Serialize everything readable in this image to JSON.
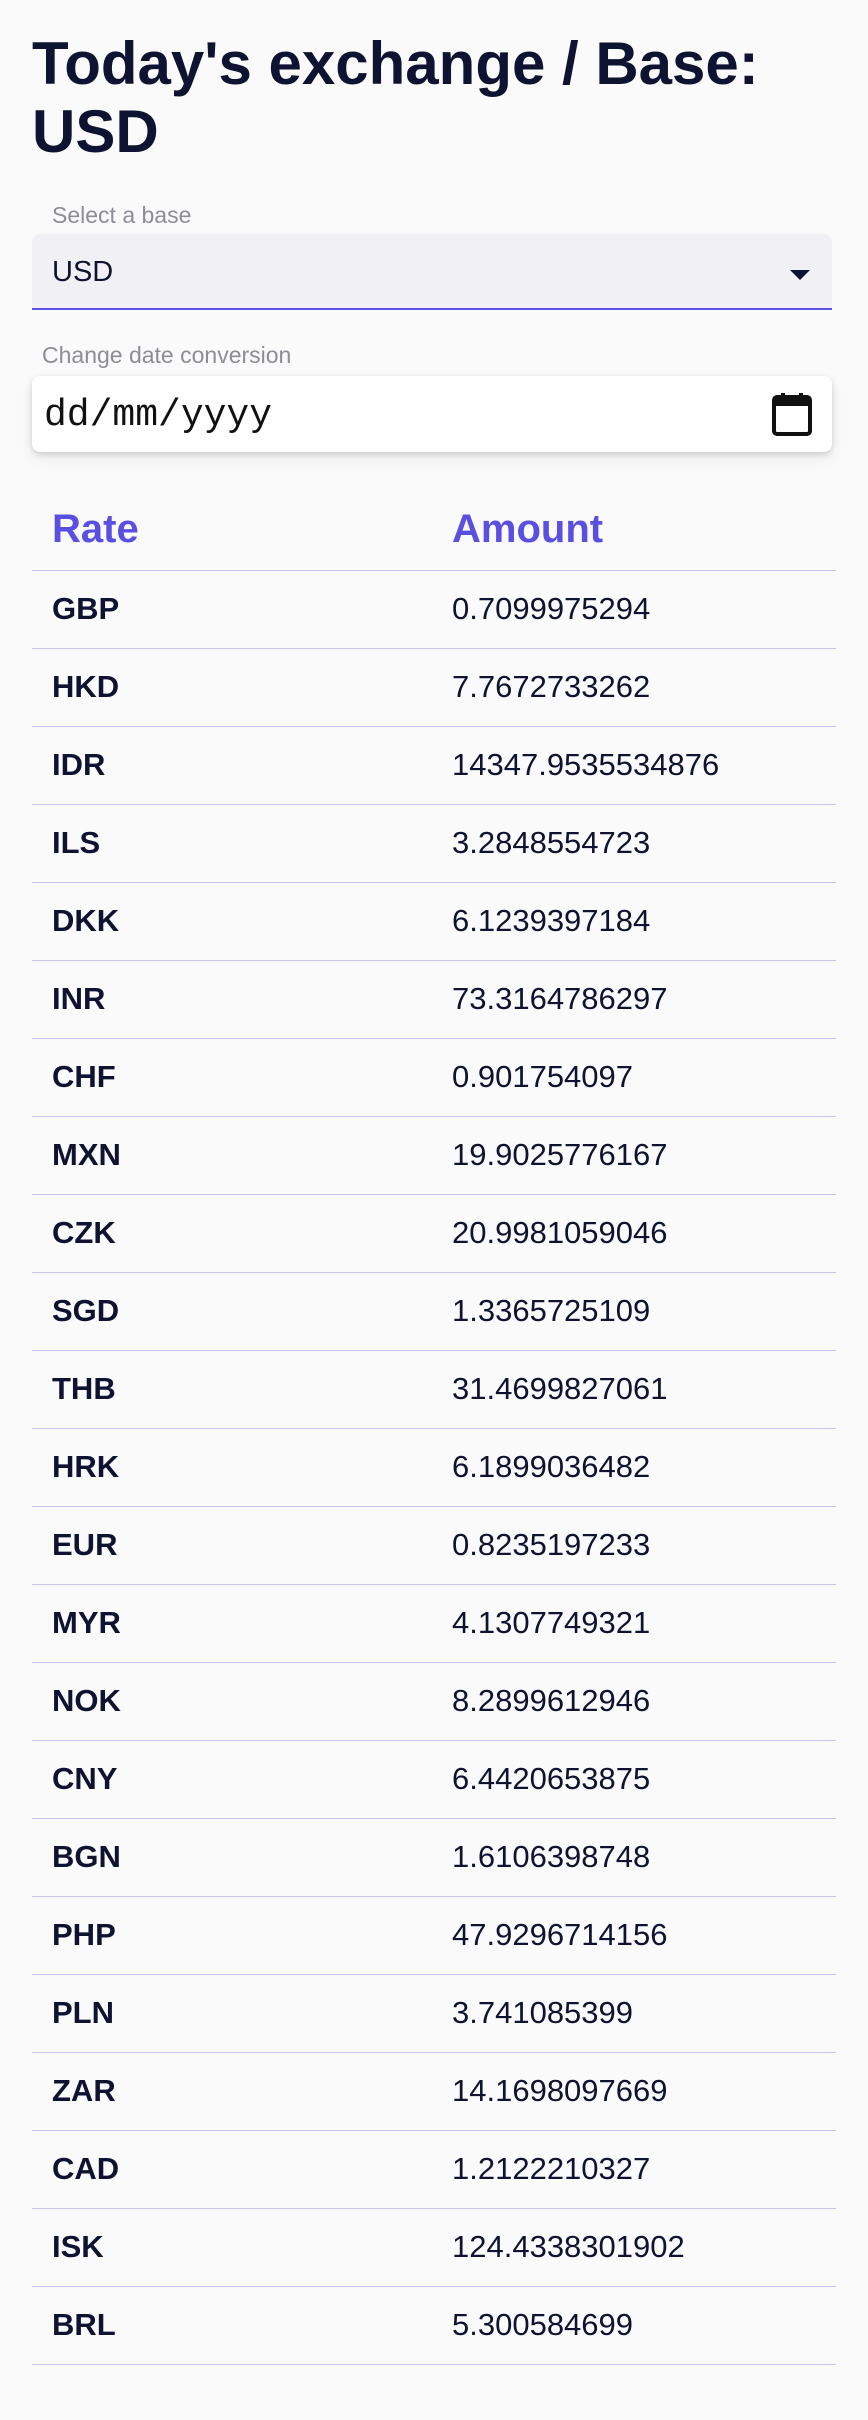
{
  "header": {
    "title": "Today's exchange / Base: USD"
  },
  "base_select": {
    "label": "Select a base",
    "value": "USD"
  },
  "date_input": {
    "label": "Change date conversion",
    "placeholder": "dd/mm/yyyy"
  },
  "table": {
    "headers": {
      "rate": "Rate",
      "amount": "Amount"
    },
    "rows": [
      {
        "rate": "GBP",
        "amount": "0.7099975294"
      },
      {
        "rate": "HKD",
        "amount": "7.7672733262"
      },
      {
        "rate": "IDR",
        "amount": "14347.9535534876"
      },
      {
        "rate": "ILS",
        "amount": "3.2848554723"
      },
      {
        "rate": "DKK",
        "amount": "6.1239397184"
      },
      {
        "rate": "INR",
        "amount": "73.3164786297"
      },
      {
        "rate": "CHF",
        "amount": "0.901754097"
      },
      {
        "rate": "MXN",
        "amount": "19.9025776167"
      },
      {
        "rate": "CZK",
        "amount": "20.9981059046"
      },
      {
        "rate": "SGD",
        "amount": "1.3365725109"
      },
      {
        "rate": "THB",
        "amount": "31.4699827061"
      },
      {
        "rate": "HRK",
        "amount": "6.1899036482"
      },
      {
        "rate": "EUR",
        "amount": "0.8235197233"
      },
      {
        "rate": "MYR",
        "amount": "4.1307749321"
      },
      {
        "rate": "NOK",
        "amount": "8.2899612946"
      },
      {
        "rate": "CNY",
        "amount": "6.4420653875"
      },
      {
        "rate": "BGN",
        "amount": "1.6106398748"
      },
      {
        "rate": "PHP",
        "amount": "47.9296714156"
      },
      {
        "rate": "PLN",
        "amount": "3.741085399"
      },
      {
        "rate": "ZAR",
        "amount": "14.1698097669"
      },
      {
        "rate": "CAD",
        "amount": "1.2122210327"
      },
      {
        "rate": "ISK",
        "amount": "124.4338301902"
      },
      {
        "rate": "BRL",
        "amount": "5.300584699"
      }
    ]
  },
  "colors": {
    "accent": "#5a4fe0",
    "text": "#0d1330",
    "divider": "#c7c5ee",
    "background": "#fafafb"
  },
  "icons": {
    "select_arrow": "caret-down-icon",
    "date_picker": "calendar-icon"
  }
}
